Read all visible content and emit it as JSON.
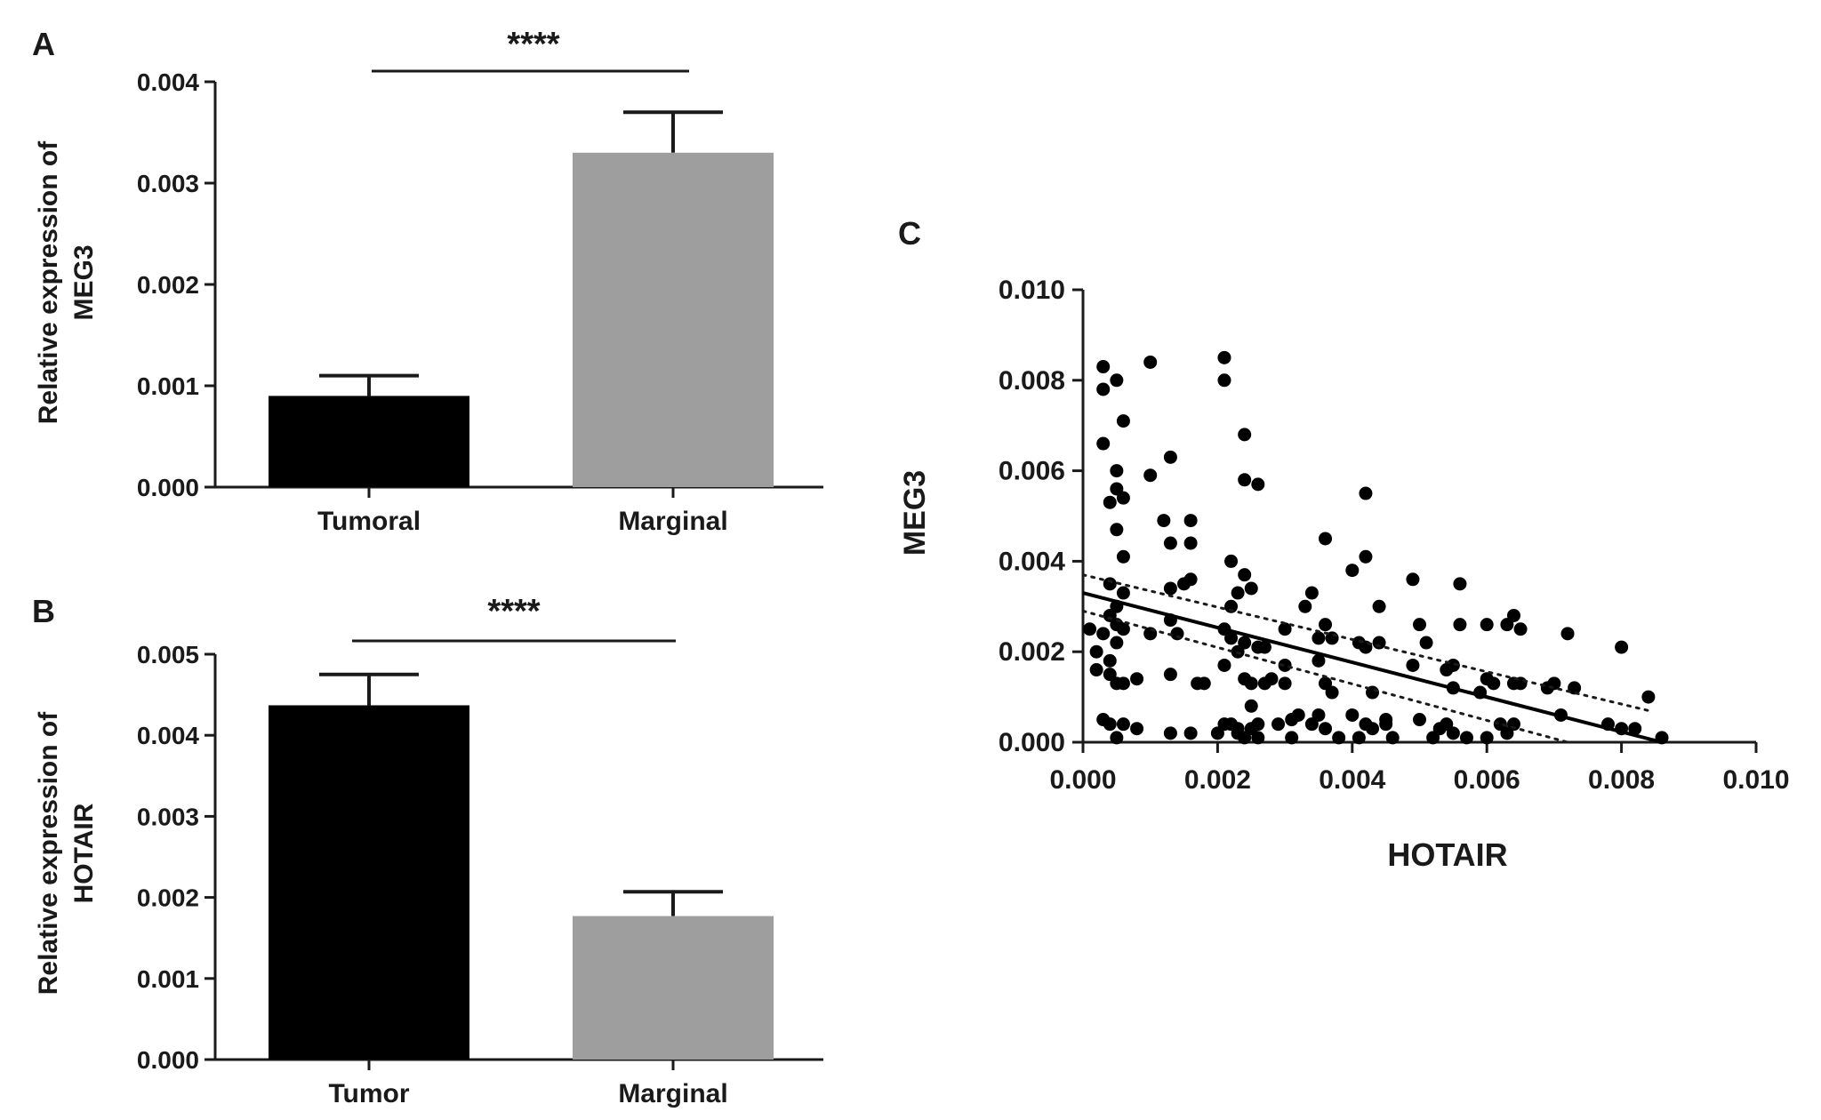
{
  "chart_data": [
    {
      "panel": "A",
      "type": "bar",
      "ylabel_lines": [
        "Relative expression of",
        "MEG3"
      ],
      "categories": [
        "Tumoral",
        "Marginal"
      ],
      "values": [
        0.0009,
        0.0033
      ],
      "errors": [
        0.0002,
        0.0004
      ],
      "colors": [
        "#000000",
        "#9e9e9e"
      ],
      "ylim": [
        0,
        0.004
      ],
      "yticks": [
        "0.000",
        "0.001",
        "0.002",
        "0.003",
        "0.004"
      ],
      "significance": "****"
    },
    {
      "panel": "B",
      "type": "bar",
      "ylabel_lines": [
        "Relative expression of",
        "HOTAIR"
      ],
      "categories": [
        "Tumor",
        "Marginal"
      ],
      "values": [
        0.00437,
        0.00177
      ],
      "errors": [
        0.00038,
        0.0003
      ],
      "colors": [
        "#000000",
        "#9e9e9e"
      ],
      "ylim": [
        0,
        0.005
      ],
      "yticks": [
        "0.000",
        "0.001",
        "0.002",
        "0.003",
        "0.004",
        "0.005"
      ],
      "significance": "****"
    },
    {
      "panel": "C",
      "type": "scatter",
      "xlabel": "HOTAIR",
      "ylabel": "MEG3",
      "xlim": [
        0,
        0.01
      ],
      "ylim": [
        0,
        0.01
      ],
      "xticks": [
        "0.000",
        "0.002",
        "0.004",
        "0.006",
        "0.008",
        "0.010"
      ],
      "yticks": [
        "0.000",
        "0.002",
        "0.004",
        "0.006",
        "0.008",
        "0.010"
      ],
      "regression": {
        "x": [
          0,
          0.0086
        ],
        "y": [
          0.0033,
          0
        ]
      },
      "confidence_band": {
        "upper": {
          "x": [
            0,
            0.0084
          ],
          "y": [
            0.0037,
            0.0007
          ]
        },
        "lower": {
          "x": [
            0,
            0.0072
          ],
          "y": [
            0.0029,
            0
          ]
        }
      },
      "points": [
        [
          0.0003,
          0.0083
        ],
        [
          0.0005,
          0.008
        ],
        [
          0.0003,
          0.0078
        ],
        [
          0.0006,
          0.0071
        ],
        [
          0.0003,
          0.0066
        ],
        [
          0.0005,
          0.006
        ],
        [
          0.0005,
          0.0056
        ],
        [
          0.0006,
          0.0054
        ],
        [
          0.0004,
          0.0053
        ],
        [
          0.0005,
          0.0047
        ],
        [
          0.0006,
          0.0041
        ],
        [
          0.0004,
          0.0035
        ],
        [
          0.0006,
          0.0033
        ],
        [
          0.0005,
          0.003
        ],
        [
          0.0004,
          0.0028
        ],
        [
          0.0005,
          0.0026
        ],
        [
          0.0006,
          0.0025
        ],
        [
          0.0003,
          0.0024
        ],
        [
          0.0005,
          0.0022
        ],
        [
          0.0004,
          0.0018
        ],
        [
          0.0002,
          0.0016
        ],
        [
          0.0004,
          0.0015
        ],
        [
          0.0005,
          0.0013
        ],
        [
          0.0006,
          0.0013
        ],
        [
          0.0003,
          0.0005
        ],
        [
          0.0004,
          0.0004
        ],
        [
          0.0006,
          0.0004
        ],
        [
          0.0005,
          0.0001
        ],
        [
          0.0002,
          0.002
        ],
        [
          0.0001,
          0.0025
        ],
        [
          0.001,
          0.0084
        ],
        [
          0.001,
          0.0059
        ],
        [
          0.0013,
          0.0063
        ],
        [
          0.0012,
          0.0049
        ],
        [
          0.0013,
          0.0044
        ],
        [
          0.0016,
          0.0049
        ],
        [
          0.0016,
          0.0044
        ],
        [
          0.0013,
          0.0034
        ],
        [
          0.0015,
          0.0035
        ],
        [
          0.0016,
          0.0036
        ],
        [
          0.001,
          0.0024
        ],
        [
          0.0013,
          0.0027
        ],
        [
          0.0014,
          0.0024
        ],
        [
          0.0013,
          0.0015
        ],
        [
          0.0017,
          0.0013
        ],
        [
          0.0018,
          0.0013
        ],
        [
          0.0013,
          0.0002
        ],
        [
          0.0016,
          0.0002
        ],
        [
          0.0008,
          0.0003
        ],
        [
          0.0008,
          0.0014
        ],
        [
          0.0021,
          0.0085
        ],
        [
          0.0021,
          0.008
        ],
        [
          0.0024,
          0.0068
        ],
        [
          0.0024,
          0.0058
        ],
        [
          0.0026,
          0.0057
        ],
        [
          0.0022,
          0.004
        ],
        [
          0.0024,
          0.0037
        ],
        [
          0.0025,
          0.0034
        ],
        [
          0.0023,
          0.0033
        ],
        [
          0.0022,
          0.003
        ],
        [
          0.0021,
          0.0025
        ],
        [
          0.0022,
          0.0023
        ],
        [
          0.0024,
          0.0022
        ],
        [
          0.0023,
          0.002
        ],
        [
          0.0026,
          0.0021
        ],
        [
          0.0027,
          0.0021
        ],
        [
          0.0021,
          0.0017
        ],
        [
          0.0024,
          0.0014
        ],
        [
          0.0025,
          0.0013
        ],
        [
          0.0027,
          0.0013
        ],
        [
          0.0021,
          0.0004
        ],
        [
          0.0022,
          0.0004
        ],
        [
          0.0023,
          0.0003
        ],
        [
          0.0024,
          0.0001
        ],
        [
          0.0025,
          0.0003
        ],
        [
          0.0026,
          0.0004
        ],
        [
          0.0025,
          0.0008
        ],
        [
          0.0023,
          0.0002
        ],
        [
          0.002,
          0.0002
        ],
        [
          0.0026,
          0.0001
        ],
        [
          0.003,
          0.0025
        ],
        [
          0.003,
          0.0013
        ],
        [
          0.0029,
          0.0004
        ],
        [
          0.0031,
          0.0005
        ],
        [
          0.0032,
          0.0006
        ],
        [
          0.003,
          0.0017
        ],
        [
          0.0028,
          0.0014
        ],
        [
          0.0031,
          0.0001
        ],
        [
          0.0034,
          0.0033
        ],
        [
          0.0035,
          0.0023
        ],
        [
          0.0036,
          0.0045
        ],
        [
          0.0036,
          0.0026
        ],
        [
          0.0037,
          0.0023
        ],
        [
          0.0035,
          0.0018
        ],
        [
          0.0036,
          0.0013
        ],
        [
          0.0037,
          0.0011
        ],
        [
          0.0035,
          0.0006
        ],
        [
          0.0034,
          0.0004
        ],
        [
          0.0036,
          0.0003
        ],
        [
          0.0038,
          0.0001
        ],
        [
          0.004,
          0.0038
        ],
        [
          0.0042,
          0.0055
        ],
        [
          0.0042,
          0.0041
        ],
        [
          0.0041,
          0.0022
        ],
        [
          0.0042,
          0.0021
        ],
        [
          0.0044,
          0.003
        ],
        [
          0.0044,
          0.0022
        ],
        [
          0.004,
          0.0006
        ],
        [
          0.0042,
          0.0004
        ],
        [
          0.0043,
          0.0003
        ],
        [
          0.0045,
          0.0004
        ],
        [
          0.0046,
          0.0001
        ],
        [
          0.0041,
          0.0001
        ],
        [
          0.0045,
          0.0005
        ],
        [
          0.0043,
          0.0011
        ],
        [
          0.0049,
          0.0036
        ],
        [
          0.005,
          0.0026
        ],
        [
          0.0051,
          0.0022
        ],
        [
          0.0049,
          0.0017
        ],
        [
          0.005,
          0.0005
        ],
        [
          0.0052,
          0.0001
        ],
        [
          0.0054,
          0.0016
        ],
        [
          0.0055,
          0.0017
        ],
        [
          0.0056,
          0.0035
        ],
        [
          0.0056,
          0.0026
        ],
        [
          0.0055,
          0.0012
        ],
        [
          0.0054,
          0.0004
        ],
        [
          0.0055,
          0.0002
        ],
        [
          0.0057,
          0.0001
        ],
        [
          0.0053,
          0.0003
        ],
        [
          0.006,
          0.0026
        ],
        [
          0.006,
          0.0014
        ],
        [
          0.0059,
          0.0011
        ],
        [
          0.0061,
          0.0013
        ],
        [
          0.0062,
          0.0004
        ],
        [
          0.0063,
          0.0002
        ],
        [
          0.006,
          0.0001
        ],
        [
          0.0063,
          0.0026
        ],
        [
          0.0064,
          0.0028
        ],
        [
          0.0065,
          0.0025
        ],
        [
          0.0064,
          0.0013
        ],
        [
          0.0065,
          0.0013
        ],
        [
          0.0064,
          0.0004
        ],
        [
          0.007,
          0.0013
        ],
        [
          0.0071,
          0.0006
        ],
        [
          0.0072,
          0.0024
        ],
        [
          0.0073,
          0.0012
        ],
        [
          0.008,
          0.0021
        ],
        [
          0.008,
          0.0003
        ],
        [
          0.0082,
          0.0003
        ],
        [
          0.0084,
          0.001
        ],
        [
          0.0086,
          0.0001
        ],
        [
          0.0078,
          0.0004
        ],
        [
          0.0069,
          0.0012
        ],
        [
          0.0033,
          0.003
        ]
      ]
    }
  ],
  "panel_letters": [
    "A",
    "B",
    "C"
  ]
}
